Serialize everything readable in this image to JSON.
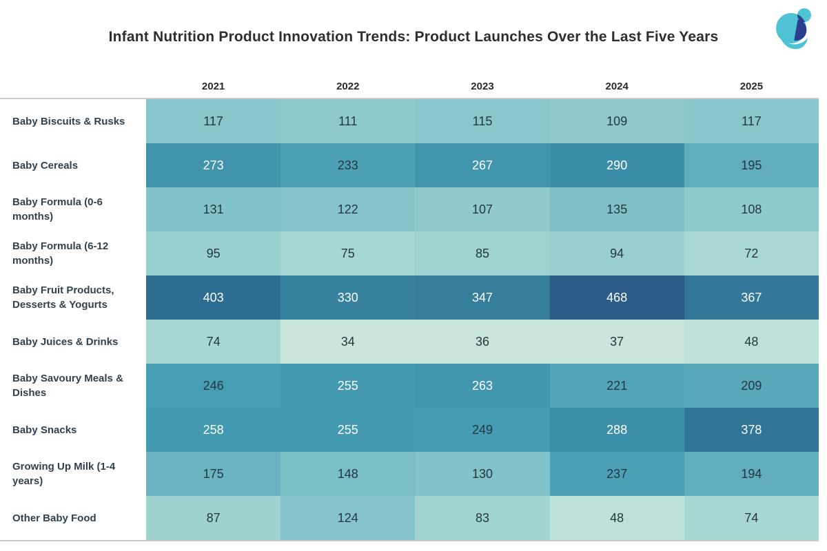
{
  "page": {
    "title": "Infant Nutrition Product Innovation Trends: Product Launches Over the Last Five Years"
  },
  "logo": {
    "teal": "#4ec3d4",
    "navy": "#2b3e8f"
  },
  "chart_data": {
    "type": "heatmap",
    "title": "Infant Nutrition Product Innovation Trends: Product Launches Over the Last Five Years",
    "columns": [
      "2021",
      "2022",
      "2023",
      "2024",
      "2025"
    ],
    "rows": [
      {
        "label": "Baby Biscuits & Rusks",
        "values": [
          117,
          111,
          115,
          109,
          117
        ]
      },
      {
        "label": "Baby Cereals",
        "values": [
          273,
          233,
          267,
          290,
          195
        ]
      },
      {
        "label": "Baby Formula (0-6 months)",
        "values": [
          131,
          122,
          107,
          135,
          108
        ]
      },
      {
        "label": "Baby Formula (6-12 months)",
        "values": [
          95,
          75,
          85,
          94,
          72
        ]
      },
      {
        "label": "Baby Fruit Products, Desserts & Yogurts",
        "values": [
          403,
          330,
          347,
          468,
          367
        ]
      },
      {
        "label": "Baby Juices & Drinks",
        "values": [
          74,
          34,
          36,
          37,
          48
        ]
      },
      {
        "label": "Baby Savoury Meals & Dishes",
        "values": [
          246,
          255,
          263,
          221,
          209
        ]
      },
      {
        "label": "Baby Snacks",
        "values": [
          258,
          255,
          249,
          288,
          378
        ]
      },
      {
        "label": "Growing Up Milk (1-4 years)",
        "values": [
          175,
          148,
          130,
          237,
          194
        ]
      },
      {
        "label": "Other Baby Food",
        "values": [
          87,
          124,
          83,
          48,
          74
        ]
      }
    ],
    "value_range": [
      34,
      468
    ],
    "legend": false,
    "grid": false,
    "color_scale": {
      "stops": [
        [
          34,
          "#cbe7dc"
        ],
        [
          75,
          "#a6d7d3"
        ],
        [
          120,
          "#87c5cb"
        ],
        [
          150,
          "#78bcc5"
        ],
        [
          200,
          "#5cabbc"
        ],
        [
          250,
          "#459cb2"
        ],
        [
          290,
          "#3b8ea7"
        ],
        [
          340,
          "#36809d"
        ],
        [
          403,
          "#2e6d92"
        ],
        [
          468,
          "#2c5c88"
        ]
      ],
      "text_dark": "#243642",
      "text_light": "#ffffff",
      "light_text_threshold": 250
    }
  }
}
